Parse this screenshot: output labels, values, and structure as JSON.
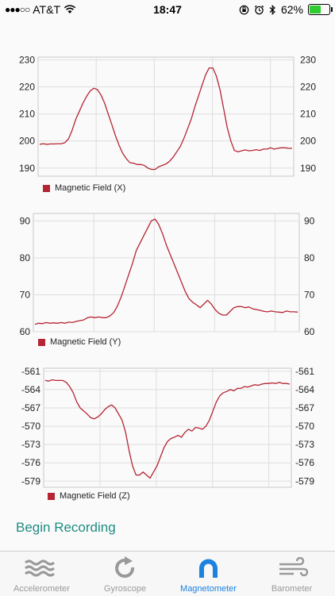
{
  "status_bar": {
    "carrier": "AT&T",
    "time": "18:47",
    "battery_percent": "62%",
    "battery_level": 0.62
  },
  "colors": {
    "series": "#b52533",
    "accent": "#1b82e0",
    "link": "#1e8c83",
    "inactive": "#999999"
  },
  "chart_data": [
    {
      "type": "line",
      "ylim": [
        187,
        231
      ],
      "yticks": [
        "190",
        "200",
        "210",
        "220",
        "230"
      ],
      "series": [
        {
          "name": "Magnetic Field (X)",
          "values": [
            198.8,
            199,
            198.8,
            198.9,
            198.9,
            199,
            199,
            199.4,
            200.8,
            204,
            208,
            211,
            214,
            216.5,
            218.5,
            219.5,
            219,
            217,
            214,
            210,
            206,
            202,
            198.5,
            195.5,
            193.5,
            192,
            191.8,
            191.3,
            191.3,
            191,
            190,
            189.5,
            189.5,
            190.5,
            191,
            191.5,
            192.5,
            194,
            196,
            198,
            201,
            204.5,
            208,
            212.5,
            216.5,
            220.5,
            224.5,
            227,
            227,
            224,
            219,
            212,
            205,
            200,
            196.5,
            196,
            196.4,
            196.7,
            196.4,
            196.5,
            196.8,
            196.5,
            197,
            197,
            197.5,
            197,
            197.3,
            197.5,
            197.5,
            197.3,
            197.3
          ]
        }
      ]
    },
    {
      "type": "line",
      "ylim": [
        60,
        92
      ],
      "yticks": [
        "60",
        "70",
        "80",
        "90"
      ],
      "series": [
        {
          "name": "Magnetic Field (Y)",
          "values": [
            62,
            62.3,
            62.2,
            62.5,
            62.3,
            62.4,
            62.3,
            62.5,
            62.3,
            62.6,
            62.5,
            62.8,
            63,
            63.2,
            63.8,
            64,
            63.8,
            64,
            63.8,
            63.8,
            64.3,
            65.2,
            67,
            69.5,
            72.5,
            75.5,
            78.5,
            82,
            84,
            86,
            88,
            90,
            90.5,
            89,
            86.5,
            83.5,
            81,
            78.5,
            76,
            73.5,
            71,
            69,
            68,
            67.3,
            66.5,
            67.5,
            68.5,
            67.5,
            66,
            65,
            64.5,
            64.5,
            65.5,
            66.5,
            66.8,
            66.8,
            66.5,
            66.7,
            66.2,
            66,
            65.8,
            65.5,
            65.4,
            65.6,
            65.4,
            65.3,
            65.2,
            65.6,
            65.4,
            65.4,
            65.3
          ]
        }
      ]
    },
    {
      "type": "line",
      "ylim": [
        -580,
        -560.5
      ],
      "yticks": [
        "-579",
        "-576",
        "-573",
        "-570",
        "-567",
        "-564",
        "-561"
      ],
      "series": [
        {
          "name": "Magnetic Field (Z)",
          "values": [
            -562.5,
            -562.6,
            -562.4,
            -562.5,
            -562.5,
            -562.5,
            -562.8,
            -563.5,
            -564.5,
            -566,
            -567,
            -567.5,
            -568,
            -568.6,
            -568.8,
            -568.5,
            -568,
            -567.3,
            -566.8,
            -566.5,
            -567,
            -568,
            -569,
            -571,
            -574,
            -576.5,
            -578,
            -578,
            -577.5,
            -578,
            -578.5,
            -577.5,
            -576.5,
            -575,
            -573.5,
            -572.5,
            -572,
            -571.8,
            -571.5,
            -571.8,
            -571,
            -570.5,
            -570.8,
            -570.2,
            -570.3,
            -570.5,
            -570,
            -569,
            -567.5,
            -566,
            -565,
            -564.5,
            -564.3,
            -564,
            -564.2,
            -563.8,
            -563.8,
            -563.5,
            -563.6,
            -563.4,
            -563.2,
            -563.3,
            -563.1,
            -563,
            -563,
            -562.9,
            -563,
            -562.8,
            -563,
            -563,
            -563.1
          ]
        }
      ]
    }
  ],
  "begin_recording_label": "Begin Recording",
  "tabs": [
    {
      "label": "Accelerometer",
      "icon": "wave-icon"
    },
    {
      "label": "Gyroscope",
      "icon": "rotate-icon"
    },
    {
      "label": "Magnetometer",
      "icon": "magnet-icon",
      "active": true
    },
    {
      "label": "Barometer",
      "icon": "wind-icon"
    }
  ]
}
